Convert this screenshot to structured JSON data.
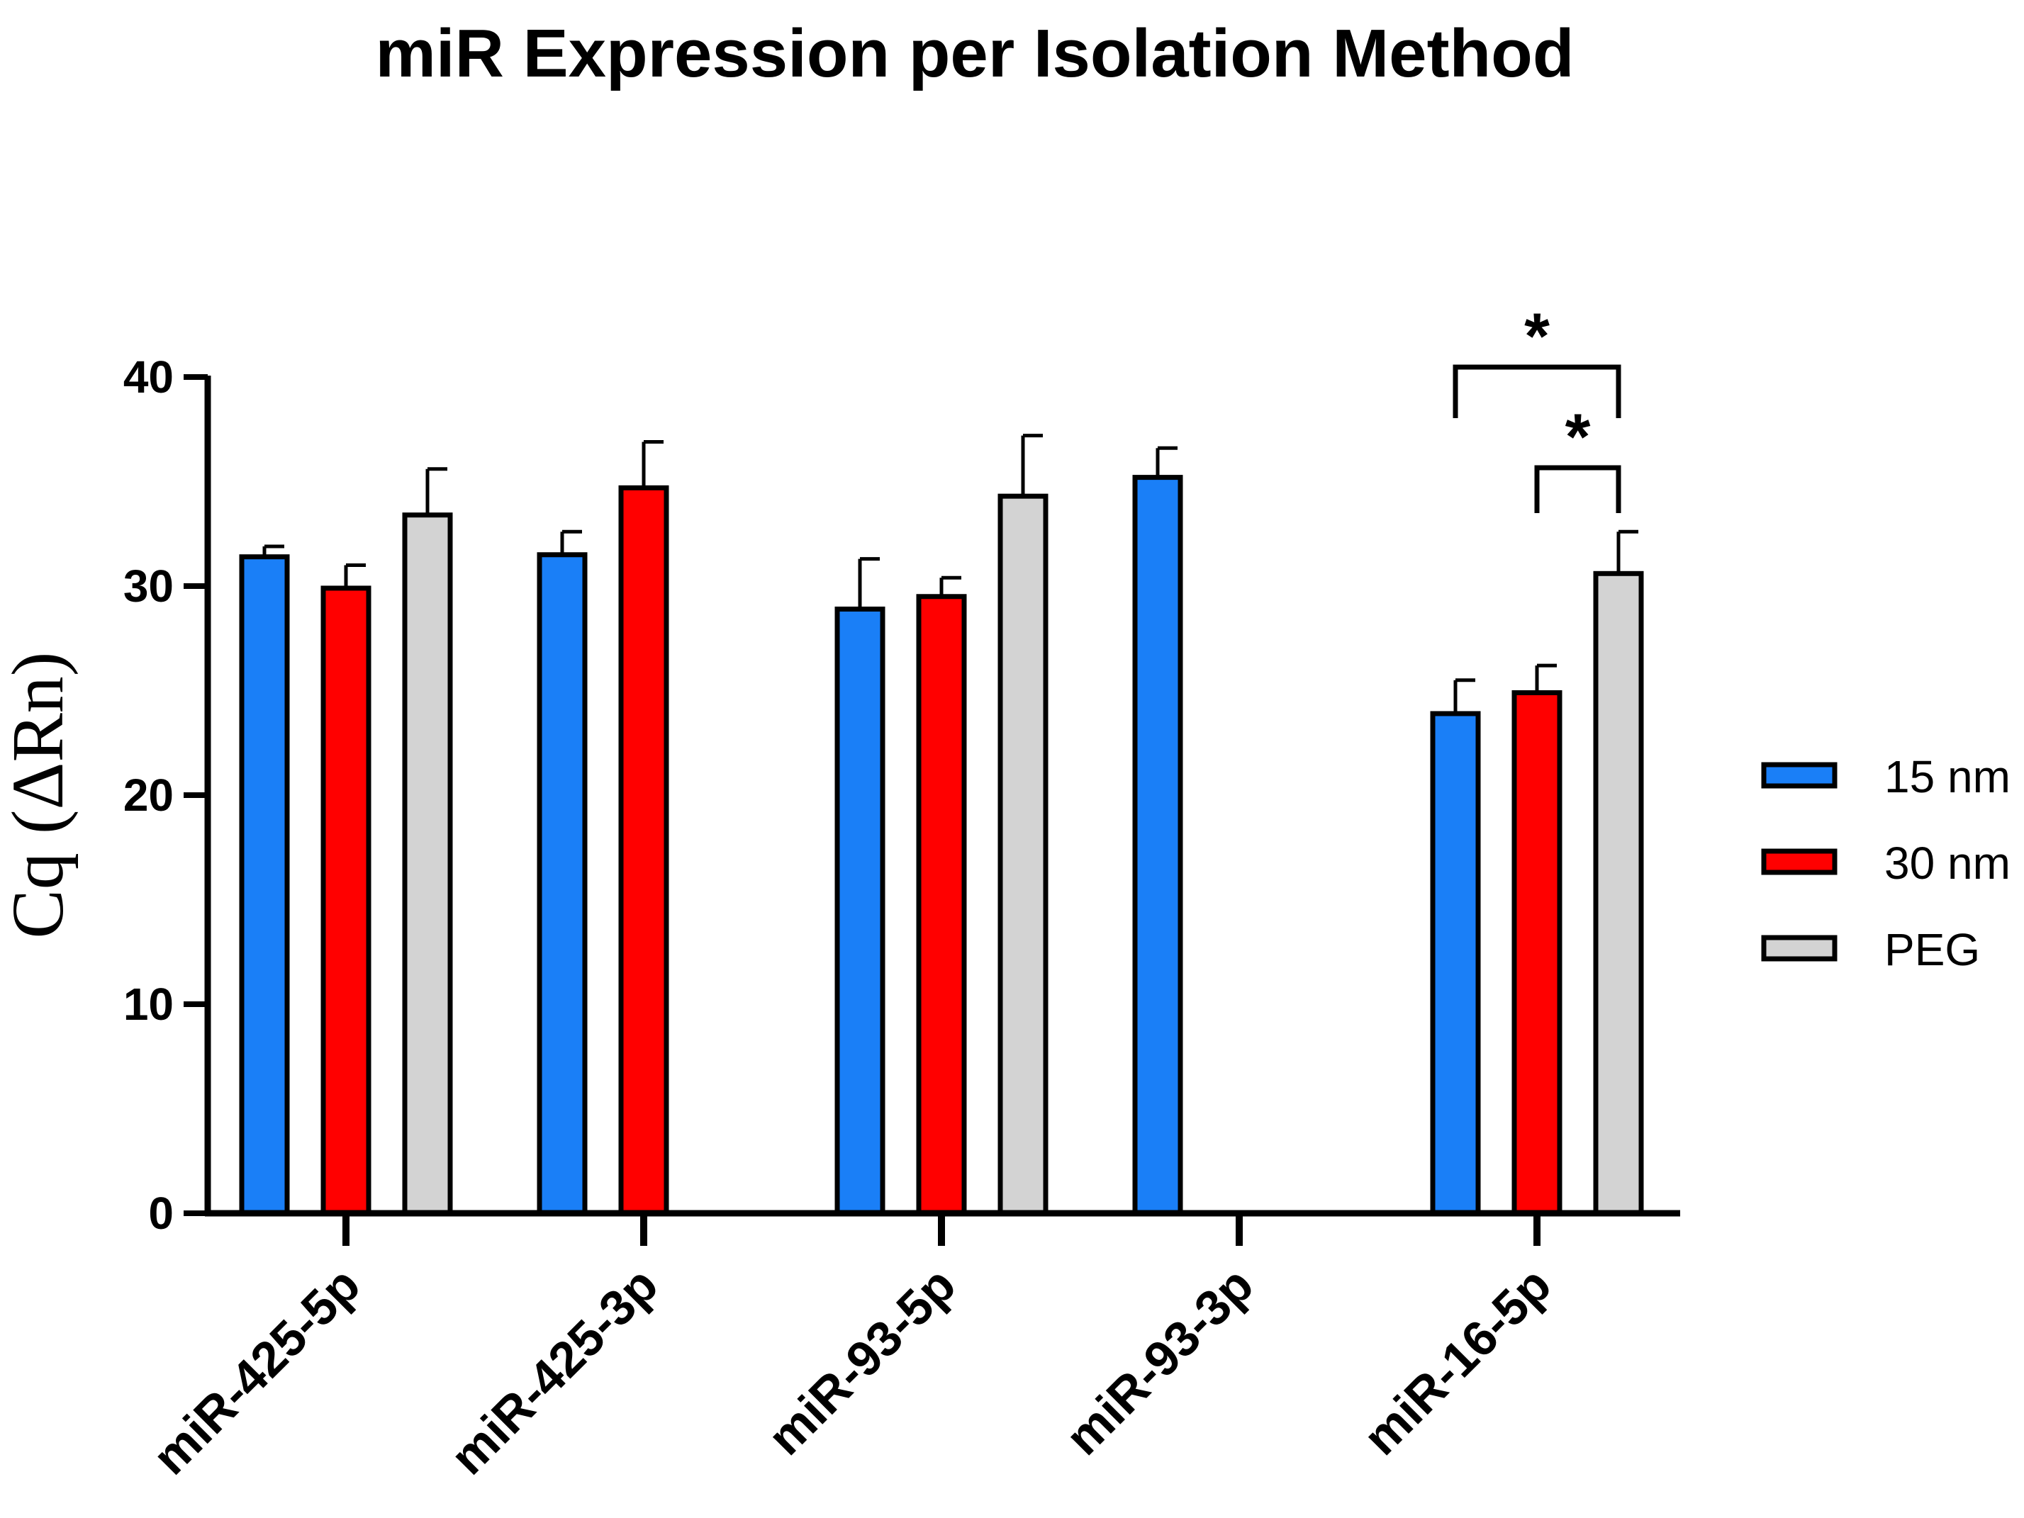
{
  "chart_data": {
    "type": "bar",
    "title": "miR Expression per Isolation Method",
    "xlabel": "",
    "ylabel": "Cq (ΔRn)",
    "ylim": [
      0,
      40
    ],
    "yticks": [
      0,
      10,
      20,
      30,
      40
    ],
    "categories": [
      "miR-425-5p",
      "miR-425-3p",
      "miR-93-5p",
      "miR-93-3p",
      "miR-16-5p"
    ],
    "series": [
      {
        "name": "15 nm",
        "color": "#1a7ff7",
        "values": [
          31.4,
          31.5,
          28.9,
          35.2,
          23.9
        ],
        "errors": [
          0.5,
          1.1,
          2.4,
          1.4,
          1.6
        ]
      },
      {
        "name": "30 nm",
        "color": "#ff0000",
        "values": [
          29.9,
          34.7,
          29.5,
          null,
          24.9
        ],
        "errors": [
          1.1,
          2.2,
          0.9,
          null,
          1.3
        ]
      },
      {
        "name": "PEG",
        "color": "#d3d3d3",
        "values": [
          33.4,
          null,
          34.3,
          null,
          30.6
        ],
        "errors": [
          2.2,
          null,
          2.9,
          null,
          2.0
        ]
      }
    ],
    "significance": [
      {
        "category": "miR-16-5p",
        "from": "15 nm",
        "to": "PEG",
        "label": "*"
      },
      {
        "category": "miR-16-5p",
        "from": "30 nm",
        "to": "PEG",
        "label": "*"
      }
    ],
    "legend_position": "right"
  }
}
